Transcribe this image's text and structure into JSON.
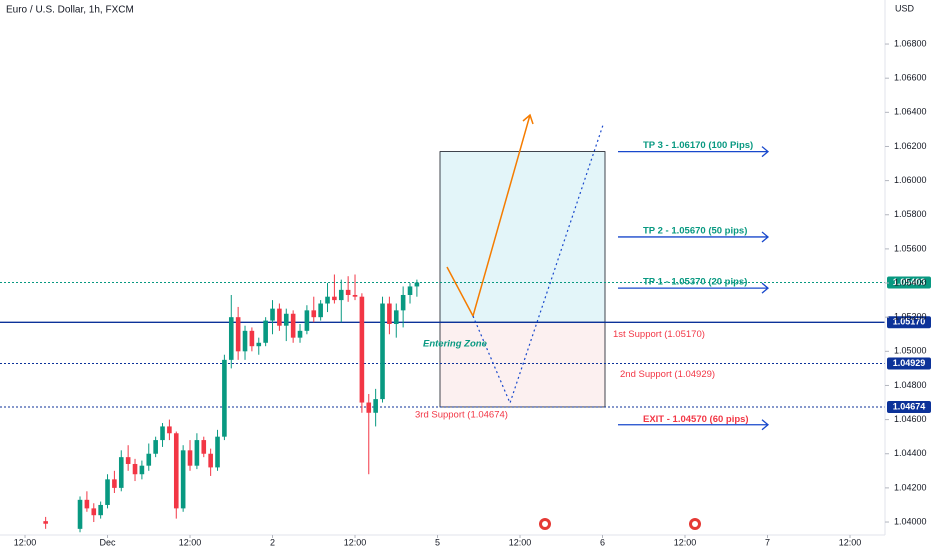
{
  "chart_data": {
    "type": "candlestick",
    "title": "Euro / U.S. Dollar, 1h, FXCM",
    "currency": "USD",
    "up_color": "#089981",
    "down_color": "#f23645",
    "xlim": [
      -3.64,
      125.09
    ],
    "xticks": [
      {
        "value": 0,
        "label": "12:00"
      },
      {
        "value": 12,
        "label": "Dec"
      },
      {
        "value": 24,
        "label": "12:00"
      },
      {
        "value": 36,
        "label": "2"
      },
      {
        "value": 48,
        "label": "12:00"
      },
      {
        "value": 60,
        "label": "5"
      },
      {
        "value": 72,
        "label": "12:00"
      },
      {
        "value": 84,
        "label": "6"
      },
      {
        "value": 96,
        "label": "12:00"
      },
      {
        "value": 108,
        "label": "7"
      },
      {
        "value": 120,
        "label": "12:00"
      }
    ],
    "ylim": [
      1.03924,
      1.07058
    ],
    "yticks": [
      {
        "value": 1.04,
        "label": "1.04000"
      },
      {
        "value": 1.042,
        "label": "1.04200"
      },
      {
        "value": 1.044,
        "label": "1.04400"
      },
      {
        "value": 1.046,
        "label": "1.04600"
      },
      {
        "value": 1.048,
        "label": "1.04800"
      },
      {
        "value": 1.05,
        "label": "1.05000"
      },
      {
        "value": 1.052,
        "label": "1.05200"
      },
      {
        "value": 1.054,
        "label": "1.05400"
      },
      {
        "value": 1.056,
        "label": "1.05600"
      },
      {
        "value": 1.058,
        "label": "1.05800"
      },
      {
        "value": 1.06,
        "label": "1.06000"
      },
      {
        "value": 1.062,
        "label": "1.06200"
      },
      {
        "value": 1.064,
        "label": "1.06400"
      },
      {
        "value": 1.066,
        "label": "1.06600"
      },
      {
        "value": 1.068,
        "label": "1.06800"
      }
    ],
    "grid": false,
    "candles": {
      "x": [
        3,
        8,
        9,
        10,
        11,
        12,
        13,
        14,
        15,
        16,
        17,
        18,
        19,
        20,
        21,
        22,
        23,
        24,
        25,
        26,
        27,
        28,
        29,
        30,
        31,
        32,
        33,
        34,
        35,
        36,
        37,
        38,
        39,
        40,
        41,
        42,
        43,
        44,
        45,
        46,
        47,
        48,
        49,
        50,
        51,
        52,
        53,
        54,
        55,
        56,
        57
      ],
      "open": [
        1.04005,
        1.0396,
        1.0413,
        1.0408,
        1.0404,
        1.041,
        1.0425,
        1.042,
        1.0438,
        1.0434,
        1.0428,
        1.0433,
        1.044,
        1.0448,
        1.0456,
        1.0452,
        1.0408,
        1.0442,
        1.0433,
        1.0448,
        1.044,
        1.0432,
        1.045,
        1.0495,
        1.052,
        1.05,
        1.0512,
        1.0503,
        1.0505,
        1.0518,
        1.0525,
        1.0515,
        1.0522,
        1.0508,
        1.0512,
        1.0524,
        1.052,
        1.0528,
        1.0532,
        1.053,
        1.0536,
        1.0533,
        1.0532,
        1.047,
        1.0464,
        1.0472,
        1.0528,
        1.0516,
        1.0524,
        1.0533,
        1.0538
      ],
      "high": [
        1.0403,
        1.0415,
        1.0418,
        1.0411,
        1.0412,
        1.0428,
        1.043,
        1.0442,
        1.0445,
        1.0437,
        1.0436,
        1.0446,
        1.045,
        1.0458,
        1.046,
        1.0453,
        1.0445,
        1.0448,
        1.0452,
        1.045,
        1.0443,
        1.0454,
        1.0498,
        1.0533,
        1.0526,
        1.0515,
        1.0514,
        1.0508,
        1.052,
        1.053,
        1.0528,
        1.0525,
        1.0524,
        1.0516,
        1.0527,
        1.0532,
        1.053,
        1.054,
        1.0545,
        1.0542,
        1.0544,
        1.0545,
        1.0534,
        1.0475,
        1.0478,
        1.0532,
        1.0532,
        1.0528,
        1.0538,
        1.054,
        1.0542
      ],
      "low": [
        1.0396,
        1.0394,
        1.0406,
        1.04,
        1.0402,
        1.0408,
        1.0417,
        1.0418,
        1.043,
        1.0424,
        1.0425,
        1.043,
        1.0438,
        1.0444,
        1.0448,
        1.0402,
        1.0406,
        1.043,
        1.0431,
        1.0438,
        1.0427,
        1.043,
        1.0448,
        1.049,
        1.0495,
        1.0495,
        1.05,
        1.0498,
        1.0503,
        1.051,
        1.0512,
        1.0506,
        1.0505,
        1.0505,
        1.051,
        1.0517,
        1.0518,
        1.0523,
        1.0528,
        1.0517,
        1.0529,
        1.053,
        1.0464,
        1.0428,
        1.0456,
        1.047,
        1.051,
        1.0508,
        1.0514,
        1.0528,
        1.0532
      ],
      "close": [
        1.0399,
        1.0413,
        1.0408,
        1.0404,
        1.041,
        1.0425,
        1.042,
        1.0438,
        1.0434,
        1.0428,
        1.0433,
        1.044,
        1.0448,
        1.0456,
        1.0452,
        1.0408,
        1.0442,
        1.0433,
        1.0448,
        1.044,
        1.0432,
        1.045,
        1.0495,
        1.052,
        1.05,
        1.0512,
        1.0503,
        1.0505,
        1.0518,
        1.0525,
        1.0515,
        1.0522,
        1.0508,
        1.0512,
        1.0524,
        1.052,
        1.0528,
        1.0532,
        1.053,
        1.0536,
        1.0533,
        1.0532,
        1.047,
        1.0464,
        1.0472,
        1.0528,
        1.0516,
        1.0524,
        1.0533,
        1.0538,
        1.05403
      ]
    },
    "price_lines": [
      {
        "value": 1.05403,
        "label": "1.05403",
        "color": "#089981",
        "style": "dotted"
      },
      {
        "value": 1.0517,
        "label": "1.05170",
        "color": "#0c3299",
        "style": "solid"
      },
      {
        "value": 1.04929,
        "label": "1.04929",
        "color": "#0c3299",
        "style": "dotted"
      },
      {
        "value": 1.04674,
        "label": "1.04674",
        "color": "#0c3299",
        "style": "dotted"
      }
    ],
    "targets": [
      {
        "text": "TP 3 - 1.06170 (100 Pips)",
        "value": 1.0617
      },
      {
        "text": "TP 2 - 1.05670 (50 pips)",
        "value": 1.0567
      },
      {
        "text": "TP 1 - 1.05370 (20 pips)",
        "value": 1.0537
      },
      {
        "text": "EXIT - 1.04570 (60 pips)",
        "value": 1.0457
      }
    ],
    "supports": [
      {
        "text": "1st Support (1.05170)",
        "value": 1.0517
      },
      {
        "text": "2nd Support (1.04929)",
        "value": 1.04929
      },
      {
        "text": "3rd Support (1.04674)",
        "value": 1.04674
      }
    ],
    "zone_label": "Entering Zone"
  }
}
